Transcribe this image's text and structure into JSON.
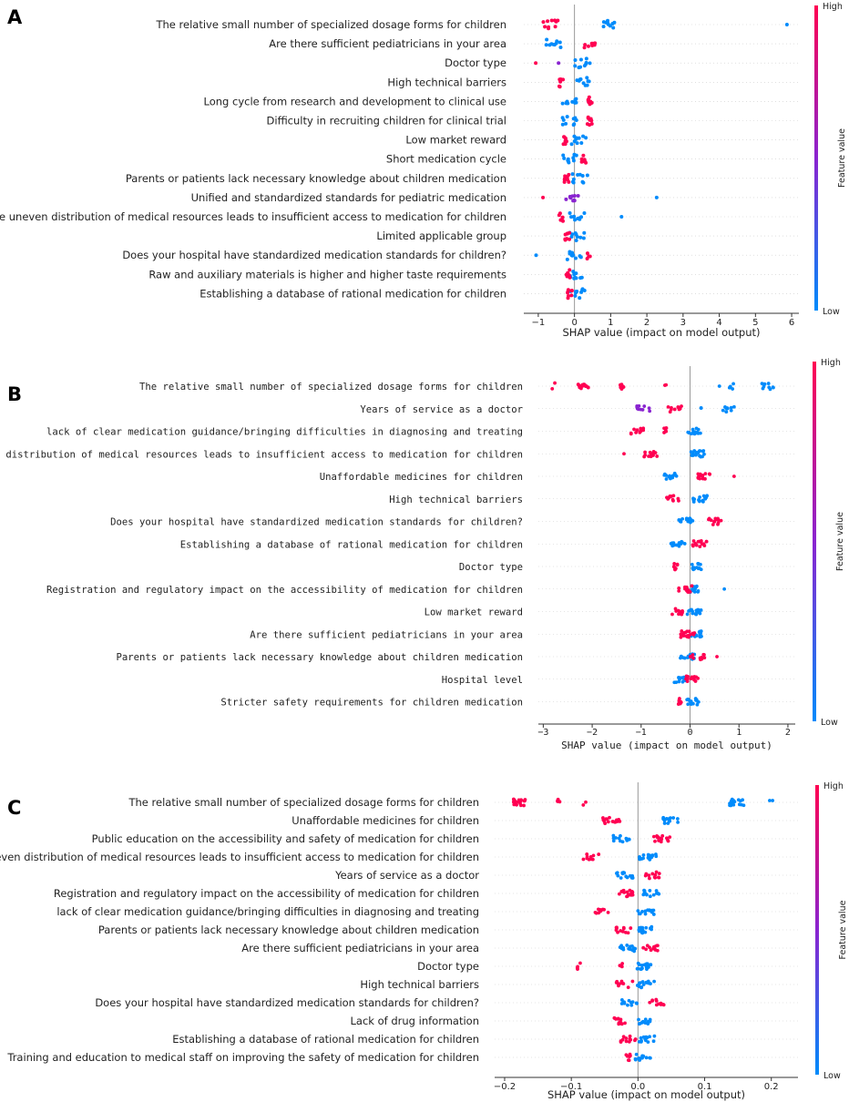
{
  "colors": {
    "high": "#ff0052",
    "mid": "#8a24d0",
    "low": "#008bfb",
    "zero_line": "#999999",
    "grid": "#cccccc"
  },
  "chart_data": [
    {
      "type": "scatter",
      "panel_label": "A",
      "xlabel": "SHAP value (impact on model output)",
      "xlim": [
        -1.4,
        6.2
      ],
      "xticks": [
        -1,
        0,
        1,
        2,
        3,
        4,
        5,
        6
      ],
      "xtick_labels": [
        "−1",
        "0",
        "1",
        "2",
        "3",
        "4",
        "5",
        "6"
      ],
      "colorbar": {
        "label": "Feature value",
        "high": "High",
        "low": "Low"
      },
      "features": [
        {
          "name": "The relative small number of specialized dosage forms for children",
          "high": [
            [
              -0.66,
              10
            ]
          ],
          "low": [
            [
              0.98,
              10
            ],
            [
              5.87,
              1
            ]
          ]
        },
        {
          "name": "Are there sufficient pediatricians in your area",
          "high": [
            [
              0.46,
              10
            ]
          ],
          "low": [
            [
              -0.58,
              10
            ]
          ]
        },
        {
          "name": "Doctor type",
          "high": [
            [
              -1.07,
              1
            ]
          ],
          "mid": [
            [
              -0.44,
              1
            ]
          ],
          "low": [
            [
              0.22,
              10
            ]
          ]
        },
        {
          "name": "High technical barriers",
          "high": [
            [
              -0.36,
              6
            ]
          ],
          "low": [
            [
              0.22,
              10
            ]
          ]
        },
        {
          "name": "Long cycle from research and development to clinical use",
          "high": [
            [
              0.42,
              8
            ]
          ],
          "low": [
            [
              -0.14,
              10
            ]
          ]
        },
        {
          "name": "Difficulty in recruiting children for clinical trial",
          "high": [
            [
              0.42,
              8
            ]
          ],
          "low": [
            [
              -0.12,
              10
            ]
          ]
        },
        {
          "name": "Low market reward",
          "high": [
            [
              -0.26,
              8
            ]
          ],
          "low": [
            [
              0.12,
              10
            ]
          ]
        },
        {
          "name": "Short medication cycle",
          "high": [
            [
              0.25,
              8
            ]
          ],
          "low": [
            [
              -0.1,
              10
            ]
          ]
        },
        {
          "name": "Parents or patients lack necessary knowledge about children medication",
          "high": [
            [
              -0.22,
              8
            ]
          ],
          "low": [
            [
              0.15,
              10
            ]
          ]
        },
        {
          "name": "Unified and standardized standards for pediatric medication",
          "high": [
            [
              -0.87,
              1
            ]
          ],
          "mid": [
            [
              -0.06,
              10
            ]
          ],
          "low": [
            [
              2.27,
              1
            ]
          ]
        },
        {
          "name": "The uneven distribution of medical resources leads to insufficient access to medication for children",
          "high": [
            [
              -0.36,
              6
            ]
          ],
          "low": [
            [
              0.06,
              10
            ],
            [
              1.3,
              1
            ]
          ]
        },
        {
          "name": "Limited applicable group",
          "high": [
            [
              -0.2,
              8
            ]
          ],
          "low": [
            [
              0.07,
              10
            ]
          ]
        },
        {
          "name": "Does your hospital have standardized medication standards for children?",
          "high": [
            [
              0.37,
              4
            ]
          ],
          "low": [
            [
              -1.06,
              1
            ],
            [
              -0.02,
              10
            ]
          ]
        },
        {
          "name": "Raw and auxiliary materials is higher and higher taste requirements",
          "high": [
            [
              -0.18,
              8
            ]
          ],
          "low": [
            [
              0.08,
              10
            ]
          ]
        },
        {
          "name": "Establishing a database of rational medication for children",
          "high": [
            [
              -0.13,
              8
            ]
          ],
          "low": [
            [
              0.09,
              10
            ]
          ]
        }
      ]
    },
    {
      "type": "scatter",
      "panel_label": "B",
      "xlabel": "SHAP value (impact on model output)",
      "xlim": [
        -3.1,
        2.15
      ],
      "xticks": [
        -3,
        -2,
        -1,
        0,
        1,
        2
      ],
      "xtick_labels": [
        "−3",
        "−2",
        "−1",
        "0",
        "1",
        "2"
      ],
      "colorbar": {
        "label": "Feature value",
        "high": "High",
        "low": "Low"
      },
      "features": [
        {
          "name": "The relative small number of specialized dosage forms for children",
          "high": [
            [
              -2.2,
              16
            ],
            [
              -1.4,
              8
            ],
            [
              -2.8,
              2
            ],
            [
              -0.5,
              2
            ]
          ],
          "low": [
            [
              1.6,
              10
            ],
            [
              0.85,
              4
            ],
            [
              0.6,
              1
            ]
          ]
        },
        {
          "name": "Years of service as a doctor",
          "high": [
            [
              -0.3,
              10
            ]
          ],
          "mid": [
            [
              -0.95,
              10
            ]
          ],
          "low": [
            [
              0.8,
              10
            ],
            [
              0.2,
              2
            ]
          ]
        },
        {
          "name": "lack of clear medication guidance/bringing difficulties in diagnosing and treating",
          "high": [
            [
              -1.1,
              12
            ],
            [
              -0.5,
              6
            ]
          ],
          "low": [
            [
              0.1,
              14
            ]
          ]
        },
        {
          "name": "The uneven distribution of medical resources leads to insufficient access to medication for children",
          "high": [
            [
              -0.8,
              14
            ],
            [
              -1.35,
              1
            ]
          ],
          "low": [
            [
              0.15,
              18
            ]
          ]
        },
        {
          "name": "Unaffordable medicines for children",
          "high": [
            [
              0.3,
              16
            ],
            [
              0.9,
              1
            ]
          ],
          "low": [
            [
              -0.4,
              14
            ]
          ]
        },
        {
          "name": "High technical barriers",
          "high": [
            [
              -0.35,
              12
            ]
          ],
          "low": [
            [
              0.2,
              16
            ]
          ]
        },
        {
          "name": "Does your hospital have standardized medication standards for children?",
          "high": [
            [
              0.5,
              14
            ]
          ],
          "low": [
            [
              -0.08,
              16
            ]
          ]
        },
        {
          "name": "Establishing a database of rational medication for children",
          "high": [
            [
              0.2,
              16
            ]
          ],
          "low": [
            [
              -0.25,
              14
            ]
          ]
        },
        {
          "name": "Doctor type",
          "high": [
            [
              -0.3,
              8
            ]
          ],
          "low": [
            [
              0.1,
              16
            ]
          ]
        },
        {
          "name": "Registration and regulatory impact on the accessibility of medication for children",
          "high": [
            [
              -0.1,
              18
            ]
          ],
          "low": [
            [
              0.05,
              16
            ],
            [
              0.7,
              1
            ]
          ]
        },
        {
          "name": "Low market reward",
          "high": [
            [
              -0.25,
              12
            ]
          ],
          "low": [
            [
              0.08,
              16
            ]
          ]
        },
        {
          "name": "Are there sufficient pediatricians in your area",
          "high": [
            [
              -0.05,
              18
            ]
          ],
          "low": [
            [
              0.12,
              14
            ]
          ]
        },
        {
          "name": "Parents or patients lack necessary knowledge about children medication",
          "high": [
            [
              0.15,
              10
            ],
            [
              0.55,
              1
            ]
          ],
          "low": [
            [
              -0.05,
              16
            ]
          ]
        },
        {
          "name": "Hospital level",
          "high": [
            [
              0.05,
              14
            ]
          ],
          "low": [
            [
              -0.2,
              12
            ]
          ]
        },
        {
          "name": "Stricter safety requirements for children medication",
          "high": [
            [
              -0.2,
              8
            ]
          ],
          "low": [
            [
              0.05,
              16
            ]
          ]
        }
      ]
    },
    {
      "type": "scatter",
      "panel_label": "C",
      "xlabel": "SHAP value (impact on model output)",
      "xlim": [
        -0.215,
        0.24
      ],
      "xticks": [
        -0.2,
        -0.1,
        0.0,
        0.1,
        0.2
      ],
      "xtick_labels": [
        "−0.2",
        "−0.1",
        "0.0",
        "0.1",
        "0.2"
      ],
      "colorbar": {
        "label": "Feature value",
        "high": "High",
        "low": "Low"
      },
      "features": [
        {
          "name": "The relative small number of specialized dosage forms for children",
          "high": [
            [
              -0.18,
              20
            ],
            [
              -0.12,
              4
            ],
            [
              -0.08,
              2
            ]
          ],
          "low": [
            [
              0.15,
              18
            ],
            [
              0.2,
              2
            ]
          ]
        },
        {
          "name": "Unaffordable medicines for children",
          "high": [
            [
              -0.04,
              16
            ]
          ],
          "low": [
            [
              0.05,
              14
            ]
          ]
        },
        {
          "name": "Public education on the accessibility and safety of medication for children",
          "high": [
            [
              0.035,
              14
            ]
          ],
          "low": [
            [
              -0.025,
              14
            ]
          ]
        },
        {
          "name": "The uneven distribution of medical resources leads to insufficient access to medication for children",
          "high": [
            [
              -0.07,
              10
            ]
          ],
          "low": [
            [
              0.015,
              18
            ]
          ]
        },
        {
          "name": "Years of service as a doctor",
          "high": [
            [
              0.02,
              12
            ]
          ],
          "low": [
            [
              -0.02,
              16
            ]
          ]
        },
        {
          "name": "Registration and regulatory impact on the accessibility of medication for children",
          "high": [
            [
              -0.02,
              18
            ]
          ],
          "low": [
            [
              0.02,
              14
            ]
          ]
        },
        {
          "name": "lack of clear medication guidance/bringing difficulties in diagnosing and treating",
          "high": [
            [
              -0.055,
              10
            ]
          ],
          "low": [
            [
              0.012,
              16
            ]
          ]
        },
        {
          "name": "Parents or patients lack necessary knowledge about children medication",
          "high": [
            [
              -0.02,
              12
            ]
          ],
          "low": [
            [
              0.012,
              16
            ]
          ]
        },
        {
          "name": "Are there sufficient pediatricians in your area",
          "high": [
            [
              0.018,
              14
            ]
          ],
          "low": [
            [
              -0.015,
              14
            ]
          ]
        },
        {
          "name": "Doctor type",
          "high": [
            [
              -0.09,
              4
            ],
            [
              -0.025,
              4
            ]
          ],
          "low": [
            [
              0.008,
              16
            ]
          ]
        },
        {
          "name": "High technical barriers",
          "high": [
            [
              -0.02,
              10
            ]
          ],
          "low": [
            [
              0.012,
              14
            ]
          ]
        },
        {
          "name": "Does your hospital have standardized medication standards for children?",
          "high": [
            [
              0.03,
              12
            ]
          ],
          "low": [
            [
              -0.012,
              14
            ]
          ]
        },
        {
          "name": "Lack of drug information",
          "high": [
            [
              -0.03,
              12
            ]
          ],
          "low": [
            [
              0.01,
              14
            ]
          ]
        },
        {
          "name": "Establishing a database of rational medication for children",
          "high": [
            [
              -0.015,
              12
            ]
          ],
          "low": [
            [
              0.012,
              14
            ]
          ]
        },
        {
          "name": "Training and education to medical staff on improving the safety of medication for children",
          "high": [
            [
              -0.015,
              8
            ]
          ],
          "low": [
            [
              0.008,
              14
            ]
          ]
        }
      ]
    }
  ]
}
